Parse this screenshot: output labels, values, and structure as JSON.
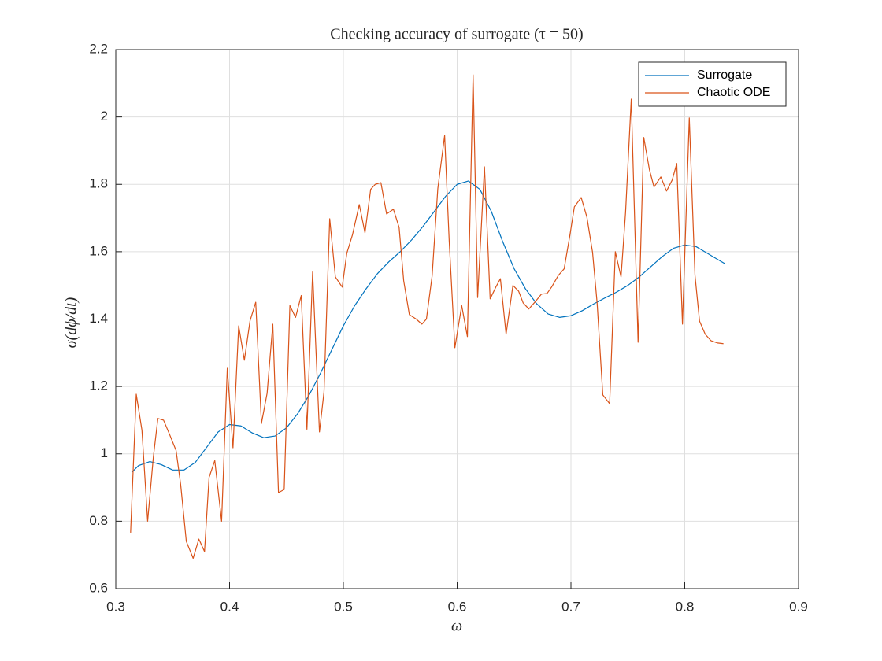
{
  "chart_data": {
    "type": "line",
    "title": "Checking accuracy of surrogate (τ = 50)",
    "x_label": "ω",
    "y_label": "σ(dϕ/dt)",
    "xlim": [
      0.3,
      0.9
    ],
    "xticks": [
      0.3,
      0.4,
      0.5,
      0.6,
      0.7,
      0.8,
      0.9
    ],
    "ylim": [
      0.6,
      2.2
    ],
    "yticks": [
      0.6,
      0.8,
      1,
      1.2,
      1.4,
      1.6,
      1.8,
      2,
      2.2
    ],
    "grid": true,
    "legend": "northeast",
    "series": [
      {
        "name": "Surrogate",
        "color": "#0072BD",
        "x": [
          0.314,
          0.32,
          0.33,
          0.34,
          0.35,
          0.36,
          0.37,
          0.38,
          0.39,
          0.4,
          0.41,
          0.42,
          0.43,
          0.44,
          0.45,
          0.46,
          0.47,
          0.48,
          0.49,
          0.5,
          0.51,
          0.52,
          0.53,
          0.54,
          0.55,
          0.56,
          0.57,
          0.58,
          0.59,
          0.6,
          0.61,
          0.62,
          0.63,
          0.64,
          0.65,
          0.66,
          0.67,
          0.68,
          0.69,
          0.7,
          0.71,
          0.72,
          0.73,
          0.74,
          0.75,
          0.76,
          0.77,
          0.78,
          0.79,
          0.8,
          0.81,
          0.82,
          0.83,
          0.835
        ],
        "values": [
          0.945,
          0.965,
          0.977,
          0.968,
          0.952,
          0.952,
          0.975,
          1.02,
          1.065,
          1.087,
          1.083,
          1.062,
          1.048,
          1.053,
          1.077,
          1.12,
          1.175,
          1.24,
          1.31,
          1.38,
          1.44,
          1.49,
          1.535,
          1.57,
          1.6,
          1.635,
          1.675,
          1.72,
          1.765,
          1.8,
          1.81,
          1.785,
          1.72,
          1.63,
          1.55,
          1.49,
          1.445,
          1.415,
          1.405,
          1.41,
          1.425,
          1.445,
          1.463,
          1.48,
          1.5,
          1.525,
          1.555,
          1.585,
          1.61,
          1.62,
          1.615,
          1.595,
          1.575,
          1.565
        ]
      },
      {
        "name": "Chaotic ODE",
        "color": "#D95319",
        "x": [
          0.313,
          0.318,
          0.323,
          0.328,
          0.333,
          0.337,
          0.342,
          0.347,
          0.353,
          0.357,
          0.362,
          0.368,
          0.373,
          0.378,
          0.382,
          0.387,
          0.393,
          0.398,
          0.403,
          0.408,
          0.413,
          0.418,
          0.423,
          0.428,
          0.433,
          0.438,
          0.443,
          0.448,
          0.453,
          0.458,
          0.463,
          0.468,
          0.473,
          0.479,
          0.483,
          0.488,
          0.493,
          0.499,
          0.503,
          0.508,
          0.514,
          0.519,
          0.524,
          0.528,
          0.533,
          0.538,
          0.544,
          0.549,
          0.553,
          0.558,
          0.564,
          0.569,
          0.573,
          0.578,
          0.583,
          0.589,
          0.593,
          0.598,
          0.604,
          0.609,
          0.614,
          0.618,
          0.624,
          0.629,
          0.634,
          0.638,
          0.643,
          0.649,
          0.654,
          0.658,
          0.663,
          0.669,
          0.674,
          0.679,
          0.683,
          0.689,
          0.694,
          0.699,
          0.703,
          0.709,
          0.714,
          0.719,
          0.723,
          0.728,
          0.734,
          0.739,
          0.744,
          0.748,
          0.753,
          0.759,
          0.764,
          0.769,
          0.773,
          0.779,
          0.784,
          0.789,
          0.793,
          0.798,
          0.804,
          0.809,
          0.813,
          0.818,
          0.823,
          0.829,
          0.834
        ],
        "values": [
          0.766,
          1.177,
          1.07,
          0.8,
          0.99,
          1.105,
          1.1,
          1.06,
          1.01,
          0.91,
          0.74,
          0.69,
          0.747,
          0.71,
          0.93,
          0.98,
          0.8,
          1.254,
          1.018,
          1.38,
          1.278,
          1.395,
          1.45,
          1.09,
          1.18,
          1.385,
          0.885,
          0.894,
          1.44,
          1.405,
          1.47,
          1.073,
          1.54,
          1.065,
          1.184,
          1.698,
          1.525,
          1.495,
          1.595,
          1.65,
          1.74,
          1.656,
          1.785,
          1.8,
          1.805,
          1.712,
          1.726,
          1.672,
          1.514,
          1.413,
          1.4,
          1.385,
          1.4,
          1.528,
          1.787,
          1.945,
          1.633,
          1.315,
          1.44,
          1.348,
          2.125,
          1.464,
          1.852,
          1.46,
          1.495,
          1.52,
          1.355,
          1.5,
          1.483,
          1.448,
          1.43,
          1.453,
          1.474,
          1.476,
          1.495,
          1.53,
          1.549,
          1.647,
          1.733,
          1.761,
          1.703,
          1.598,
          1.448,
          1.175,
          1.149,
          1.6,
          1.525,
          1.717,
          2.053,
          1.331,
          1.939,
          1.843,
          1.792,
          1.822,
          1.78,
          1.813,
          1.862,
          1.385,
          1.997,
          1.53,
          1.394,
          1.355,
          1.336,
          1.329,
          1.327
        ]
      }
    ]
  }
}
